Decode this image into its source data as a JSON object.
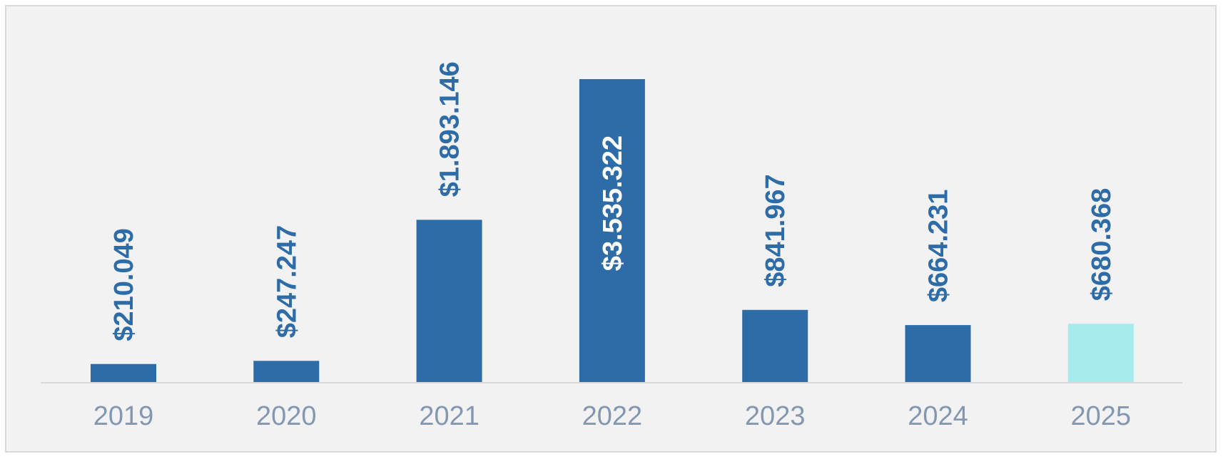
{
  "chart_data": {
    "type": "bar",
    "categories": [
      "2019",
      "2020",
      "2021",
      "2022",
      "2023",
      "2024",
      "2025"
    ],
    "values": [
      210049,
      247247,
      1893146,
      3535322,
      841967,
      664231,
      680368
    ],
    "data_labels": [
      "$210.049",
      "$247.247",
      "$1.893.146",
      "$3.535.322",
      "$841.967",
      "$664.231",
      "$680.368"
    ],
    "label_inside_bar": [
      false,
      false,
      false,
      true,
      false,
      false,
      false
    ],
    "ylim": [
      0,
      3535322
    ],
    "grid": false,
    "legend": "none",
    "title": "",
    "xlabel": "",
    "ylabel": ""
  },
  "colors": {
    "bar": "#2e6ca8",
    "bar_highlight": "#a6ecef",
    "highlight_index": 6,
    "label_outside": "#2e6ca8",
    "label_inside": "#ffffff",
    "axis_line": "#d9d9d9",
    "category_text": "#8497b0",
    "plot_background": "#f2f2f2"
  }
}
